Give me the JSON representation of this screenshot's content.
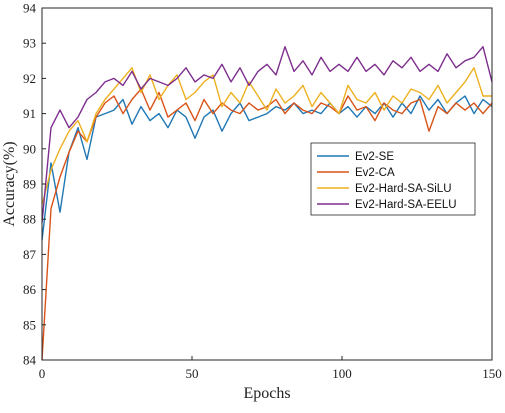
{
  "chart_data": {
    "type": "line",
    "xlabel": "Epochs",
    "ylabel": "Accuracy(%)",
    "xlim": [
      0,
      150
    ],
    "ylim": [
      84,
      94
    ],
    "xticks": [
      0,
      50,
      100,
      150
    ],
    "yticks": [
      84,
      85,
      86,
      87,
      88,
      89,
      90,
      91,
      92,
      93,
      94
    ],
    "grid": false,
    "legend_position": "center-right",
    "x": [
      0,
      3,
      6,
      9,
      12,
      15,
      18,
      21,
      24,
      27,
      30,
      33,
      36,
      39,
      42,
      45,
      48,
      51,
      54,
      57,
      60,
      63,
      66,
      69,
      72,
      75,
      78,
      81,
      84,
      87,
      90,
      93,
      96,
      99,
      102,
      105,
      108,
      111,
      114,
      117,
      120,
      123,
      126,
      129,
      132,
      135,
      138,
      141,
      144,
      147,
      150
    ],
    "series": [
      {
        "name": "Ev2-SE",
        "color": "#1f77b4",
        "values": [
          87.4,
          89.6,
          88.2,
          89.9,
          90.6,
          89.7,
          90.9,
          91.0,
          91.1,
          91.4,
          90.7,
          91.2,
          90.8,
          91.0,
          90.6,
          91.1,
          90.9,
          90.3,
          90.9,
          91.1,
          90.5,
          91.0,
          91.3,
          90.8,
          90.9,
          91.0,
          91.2,
          91.1,
          91.3,
          91.0,
          91.1,
          91.0,
          91.3,
          91.0,
          91.2,
          90.9,
          91.2,
          91.0,
          91.3,
          90.9,
          91.3,
          91.0,
          91.5,
          91.1,
          91.4,
          91.0,
          91.3,
          91.5,
          91.0,
          91.4,
          91.2
        ]
      },
      {
        "name": "Ev2-CA",
        "color": "#d95319",
        "values": [
          84.0,
          88.3,
          89.2,
          89.9,
          90.5,
          90.2,
          90.9,
          91.3,
          91.5,
          91.0,
          91.4,
          91.7,
          91.1,
          91.6,
          90.9,
          91.1,
          91.3,
          90.8,
          91.4,
          91.0,
          91.3,
          91.1,
          91.0,
          91.3,
          91.1,
          91.2,
          91.4,
          91.0,
          91.3,
          91.1,
          91.0,
          91.3,
          91.2,
          91.0,
          91.5,
          91.1,
          91.2,
          90.8,
          91.3,
          91.1,
          91.0,
          91.3,
          91.4,
          90.5,
          91.2,
          91.0,
          91.3,
          91.1,
          91.3,
          91.0,
          91.3
        ]
      },
      {
        "name": "Ev2-Hard-SA-SiLU",
        "color": "#edb120",
        "values": [
          88.4,
          89.4,
          90.0,
          90.5,
          90.8,
          90.2,
          91.0,
          91.4,
          91.7,
          92.0,
          92.3,
          91.6,
          92.1,
          91.4,
          91.8,
          92.1,
          91.4,
          91.6,
          91.9,
          92.1,
          91.2,
          91.6,
          91.3,
          91.9,
          91.5,
          91.1,
          91.7,
          91.3,
          91.5,
          91.8,
          91.2,
          91.6,
          91.3,
          91.0,
          91.8,
          91.4,
          91.3,
          91.6,
          91.1,
          91.5,
          91.3,
          91.7,
          91.6,
          91.4,
          91.8,
          91.3,
          91.6,
          91.9,
          92.3,
          91.5,
          91.5
        ]
      },
      {
        "name": "Ev2-Hard-SA-EELU",
        "color": "#7e2f8e",
        "values": [
          87.9,
          90.6,
          91.1,
          90.6,
          90.9,
          91.4,
          91.6,
          91.9,
          92.0,
          91.8,
          92.2,
          91.7,
          92.0,
          91.9,
          91.8,
          92.0,
          92.3,
          91.9,
          92.1,
          92.0,
          92.4,
          91.9,
          92.3,
          91.8,
          92.2,
          92.4,
          92.1,
          92.9,
          92.2,
          92.5,
          92.1,
          92.6,
          92.2,
          92.4,
          92.2,
          92.6,
          92.2,
          92.4,
          92.1,
          92.5,
          92.3,
          92.6,
          92.2,
          92.4,
          92.2,
          92.7,
          92.3,
          92.5,
          92.6,
          92.9,
          91.9
        ]
      }
    ]
  }
}
